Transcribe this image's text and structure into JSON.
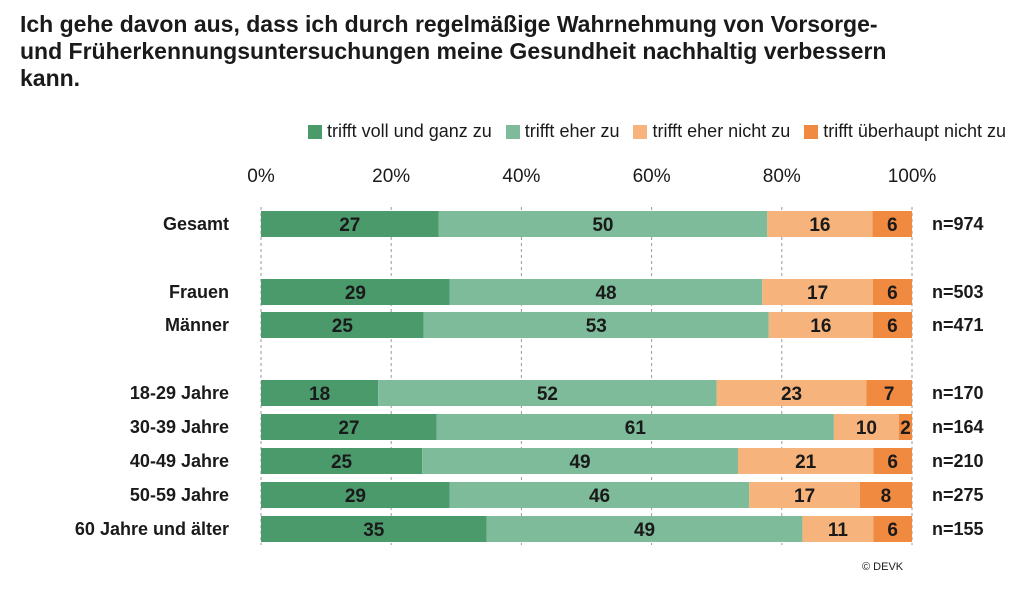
{
  "title": {
    "lines": [
      "Ich gehe davon aus, dass ich durch regelmäßige Wahrnehmung von Vorsorge-",
      "und Früherkennungsuntersuchungen meine Gesundheit nachhaltig verbessern",
      "kann."
    ]
  },
  "footer": "© DEVK",
  "colors": {
    "trifft_voll": "#4a9a6c",
    "trifft_eher": "#7dbb9a",
    "eher_nicht": "#f6b47c",
    "ueberhaupt_nicht": "#ef8a40"
  },
  "chart_data": {
    "type": "bar",
    "orientation": "horizontal-stacked-100",
    "x_ticks": [
      "0%",
      "20%",
      "40%",
      "60%",
      "80%",
      "100%"
    ],
    "xlim": [
      0,
      100
    ],
    "legend_position": "top-right",
    "series": [
      {
        "name": "trifft voll und ganz zu",
        "color": "#4a9a6c"
      },
      {
        "name": "trifft eher zu",
        "color": "#7dbb9a"
      },
      {
        "name": "trifft eher nicht zu",
        "color": "#f6b47c"
      },
      {
        "name": "trifft überhaupt nicht zu",
        "color": "#ef8a40"
      }
    ],
    "rows": [
      {
        "label": "Gesamt",
        "n": "n=974",
        "values": [
          27,
          50,
          16,
          6
        ]
      },
      {
        "label": "Frauen",
        "n": "n=503",
        "values": [
          29,
          48,
          17,
          6
        ]
      },
      {
        "label": "Männer",
        "n": "n=471",
        "values": [
          25,
          53,
          16,
          6
        ]
      },
      {
        "label": "18-29 Jahre",
        "n": "n=170",
        "values": [
          18,
          52,
          23,
          7
        ]
      },
      {
        "label": "30-39 Jahre",
        "n": "n=164",
        "values": [
          27,
          61,
          10,
          2
        ]
      },
      {
        "label": "40-49 Jahre",
        "n": "n=210",
        "values": [
          25,
          49,
          21,
          6
        ]
      },
      {
        "label": "50-59 Jahre",
        "n": "n=275",
        "values": [
          29,
          46,
          17,
          8
        ]
      },
      {
        "label": "60 Jahre und älter",
        "n": "n=155",
        "values": [
          35,
          49,
          11,
          6
        ]
      }
    ]
  }
}
